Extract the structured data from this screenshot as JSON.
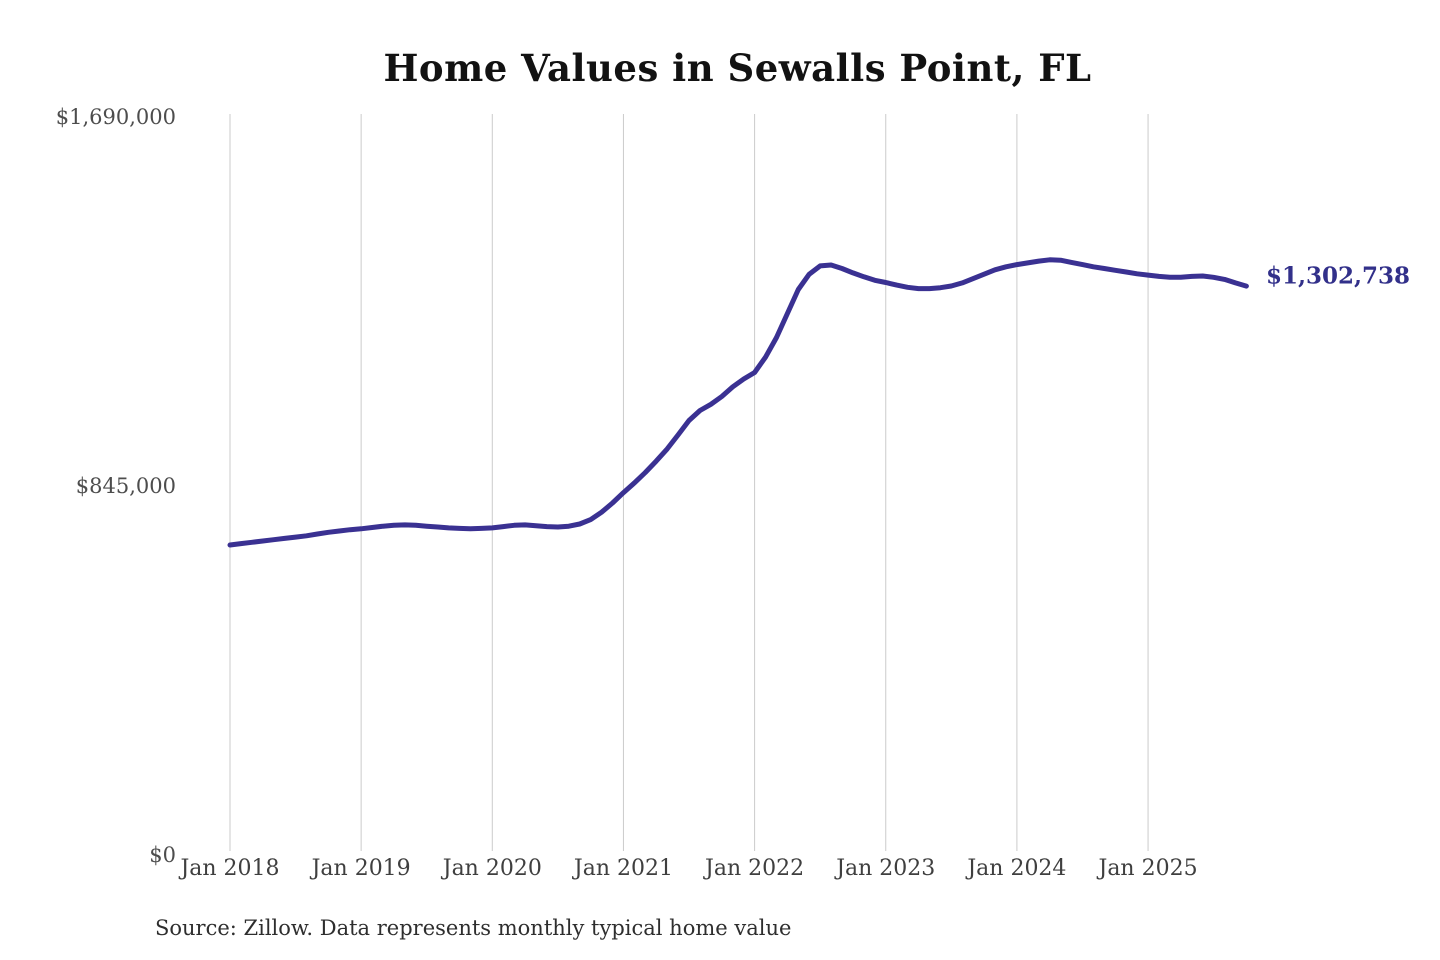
{
  "title": "Home Values in Sewalls Point, FL",
  "annotation": {
    "latest_value": "$1,302,738"
  },
  "source": "Source: Zillow. Data represents monthly typical home value",
  "colors": {
    "line": "#3a3192",
    "annotation_text": "#32308a",
    "grid": "#cbcbcb",
    "title_text": "#121212",
    "y_tick_text": "#4d4d4d",
    "x_tick_text": "#3f3f3f",
    "source_text": "#2e2e2e",
    "background": "#ffffff"
  },
  "chart_data": {
    "type": "line",
    "title": "Home Values in Sewalls Point, FL",
    "xlabel": "",
    "ylabel": "",
    "ylim": [
      0,
      1690000
    ],
    "grid": "vertical-only",
    "legend": "none",
    "end_label": "$1,302,738",
    "yticks": [
      {
        "value": 0,
        "label": "$0"
      },
      {
        "value": 845000,
        "label": "$845,000"
      },
      {
        "value": 1690000,
        "label": "$1,690,000"
      }
    ],
    "xticks": [
      "Jan 2018",
      "Jan 2019",
      "Jan 2020",
      "Jan 2021",
      "Jan 2022",
      "Jan 2023",
      "Jan 2024",
      "Jan 2025"
    ],
    "x": [
      "2018-01",
      "2018-02",
      "2018-03",
      "2018-04",
      "2018-05",
      "2018-06",
      "2018-07",
      "2018-08",
      "2018-09",
      "2018-10",
      "2018-11",
      "2018-12",
      "2019-01",
      "2019-02",
      "2019-03",
      "2019-04",
      "2019-05",
      "2019-06",
      "2019-07",
      "2019-08",
      "2019-09",
      "2019-10",
      "2019-11",
      "2019-12",
      "2020-01",
      "2020-02",
      "2020-03",
      "2020-04",
      "2020-05",
      "2020-06",
      "2020-07",
      "2020-08",
      "2020-09",
      "2020-10",
      "2020-11",
      "2020-12",
      "2021-01",
      "2021-02",
      "2021-03",
      "2021-04",
      "2021-05",
      "2021-06",
      "2021-07",
      "2021-08",
      "2021-09",
      "2021-10",
      "2021-11",
      "2021-12",
      "2022-01",
      "2022-02",
      "2022-03",
      "2022-04",
      "2022-05",
      "2022-06",
      "2022-07",
      "2022-08",
      "2022-09",
      "2022-10",
      "2022-11",
      "2022-12",
      "2023-01",
      "2023-02",
      "2023-03",
      "2023-04",
      "2023-05",
      "2023-06",
      "2023-07",
      "2023-08",
      "2023-09",
      "2023-10",
      "2023-11",
      "2023-12",
      "2024-01",
      "2024-02",
      "2024-03",
      "2024-04",
      "2024-05",
      "2024-06",
      "2024-07",
      "2024-08",
      "2024-09",
      "2024-10",
      "2024-11",
      "2024-12",
      "2025-01",
      "2025-02",
      "2025-03",
      "2025-04",
      "2025-05",
      "2025-06",
      "2025-07",
      "2025-08",
      "2025-09",
      "2025-10"
    ],
    "values": [
      710000,
      713000,
      716000,
      719000,
      722000,
      725000,
      728000,
      731000,
      735000,
      739000,
      742000,
      745000,
      747000,
      750000,
      753000,
      755000,
      756000,
      755000,
      753000,
      751000,
      749000,
      748000,
      747000,
      748000,
      749000,
      752000,
      755000,
      756000,
      754000,
      752000,
      751000,
      753000,
      758000,
      768000,
      785000,
      806000,
      830000,
      852000,
      876000,
      902000,
      930000,
      962000,
      995000,
      1018000,
      1032000,
      1050000,
      1072000,
      1090000,
      1105000,
      1140000,
      1185000,
      1240000,
      1295000,
      1330000,
      1349000,
      1351000,
      1343000,
      1333000,
      1324000,
      1316000,
      1311000,
      1305000,
      1300000,
      1297000,
      1297000,
      1299000,
      1303000,
      1310000,
      1320000,
      1330000,
      1340000,
      1347000,
      1352000,
      1356000,
      1360000,
      1363000,
      1362000,
      1357000,
      1352000,
      1347000,
      1343000,
      1339000,
      1335000,
      1331000,
      1328000,
      1325000,
      1323000,
      1323000,
      1325000,
      1326000,
      1323000,
      1318000,
      1310000,
      1302738
    ]
  }
}
